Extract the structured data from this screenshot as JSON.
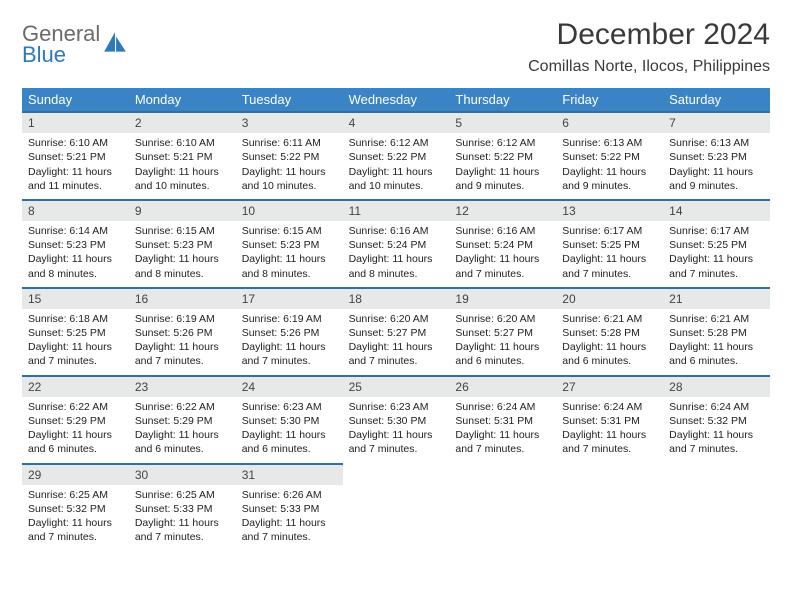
{
  "brand": {
    "general": "General",
    "blue": "Blue"
  },
  "title": "December 2024",
  "location": "Comillas Norte, Ilocos, Philippines",
  "colors": {
    "header_bg": "#3a84c5",
    "header_text": "#ffffff",
    "daynum_bg": "#e7e8e8",
    "daynum_border": "#2f6fa6",
    "logo_gray": "#6b6b6b",
    "logo_blue": "#2f79b9",
    "text": "#222222",
    "background": "#ffffff"
  },
  "layout": {
    "columns": 7,
    "rows": 5,
    "cell_fontsize_pt": 8,
    "header_fontsize_pt": 10,
    "title_fontsize_pt": 22,
    "location_fontsize_pt": 12
  },
  "weekdays": [
    "Sunday",
    "Monday",
    "Tuesday",
    "Wednesday",
    "Thursday",
    "Friday",
    "Saturday"
  ],
  "weeks": [
    [
      {
        "n": "1",
        "sunrise": "Sunrise: 6:10 AM",
        "sunset": "Sunset: 5:21 PM",
        "daylight": "Daylight: 11 hours and 11 minutes."
      },
      {
        "n": "2",
        "sunrise": "Sunrise: 6:10 AM",
        "sunset": "Sunset: 5:21 PM",
        "daylight": "Daylight: 11 hours and 10 minutes."
      },
      {
        "n": "3",
        "sunrise": "Sunrise: 6:11 AM",
        "sunset": "Sunset: 5:22 PM",
        "daylight": "Daylight: 11 hours and 10 minutes."
      },
      {
        "n": "4",
        "sunrise": "Sunrise: 6:12 AM",
        "sunset": "Sunset: 5:22 PM",
        "daylight": "Daylight: 11 hours and 10 minutes."
      },
      {
        "n": "5",
        "sunrise": "Sunrise: 6:12 AM",
        "sunset": "Sunset: 5:22 PM",
        "daylight": "Daylight: 11 hours and 9 minutes."
      },
      {
        "n": "6",
        "sunrise": "Sunrise: 6:13 AM",
        "sunset": "Sunset: 5:22 PM",
        "daylight": "Daylight: 11 hours and 9 minutes."
      },
      {
        "n": "7",
        "sunrise": "Sunrise: 6:13 AM",
        "sunset": "Sunset: 5:23 PM",
        "daylight": "Daylight: 11 hours and 9 minutes."
      }
    ],
    [
      {
        "n": "8",
        "sunrise": "Sunrise: 6:14 AM",
        "sunset": "Sunset: 5:23 PM",
        "daylight": "Daylight: 11 hours and 8 minutes."
      },
      {
        "n": "9",
        "sunrise": "Sunrise: 6:15 AM",
        "sunset": "Sunset: 5:23 PM",
        "daylight": "Daylight: 11 hours and 8 minutes."
      },
      {
        "n": "10",
        "sunrise": "Sunrise: 6:15 AM",
        "sunset": "Sunset: 5:23 PM",
        "daylight": "Daylight: 11 hours and 8 minutes."
      },
      {
        "n": "11",
        "sunrise": "Sunrise: 6:16 AM",
        "sunset": "Sunset: 5:24 PM",
        "daylight": "Daylight: 11 hours and 8 minutes."
      },
      {
        "n": "12",
        "sunrise": "Sunrise: 6:16 AM",
        "sunset": "Sunset: 5:24 PM",
        "daylight": "Daylight: 11 hours and 7 minutes."
      },
      {
        "n": "13",
        "sunrise": "Sunrise: 6:17 AM",
        "sunset": "Sunset: 5:25 PM",
        "daylight": "Daylight: 11 hours and 7 minutes."
      },
      {
        "n": "14",
        "sunrise": "Sunrise: 6:17 AM",
        "sunset": "Sunset: 5:25 PM",
        "daylight": "Daylight: 11 hours and 7 minutes."
      }
    ],
    [
      {
        "n": "15",
        "sunrise": "Sunrise: 6:18 AM",
        "sunset": "Sunset: 5:25 PM",
        "daylight": "Daylight: 11 hours and 7 minutes."
      },
      {
        "n": "16",
        "sunrise": "Sunrise: 6:19 AM",
        "sunset": "Sunset: 5:26 PM",
        "daylight": "Daylight: 11 hours and 7 minutes."
      },
      {
        "n": "17",
        "sunrise": "Sunrise: 6:19 AM",
        "sunset": "Sunset: 5:26 PM",
        "daylight": "Daylight: 11 hours and 7 minutes."
      },
      {
        "n": "18",
        "sunrise": "Sunrise: 6:20 AM",
        "sunset": "Sunset: 5:27 PM",
        "daylight": "Daylight: 11 hours and 7 minutes."
      },
      {
        "n": "19",
        "sunrise": "Sunrise: 6:20 AM",
        "sunset": "Sunset: 5:27 PM",
        "daylight": "Daylight: 11 hours and 6 minutes."
      },
      {
        "n": "20",
        "sunrise": "Sunrise: 6:21 AM",
        "sunset": "Sunset: 5:28 PM",
        "daylight": "Daylight: 11 hours and 6 minutes."
      },
      {
        "n": "21",
        "sunrise": "Sunrise: 6:21 AM",
        "sunset": "Sunset: 5:28 PM",
        "daylight": "Daylight: 11 hours and 6 minutes."
      }
    ],
    [
      {
        "n": "22",
        "sunrise": "Sunrise: 6:22 AM",
        "sunset": "Sunset: 5:29 PM",
        "daylight": "Daylight: 11 hours and 6 minutes."
      },
      {
        "n": "23",
        "sunrise": "Sunrise: 6:22 AM",
        "sunset": "Sunset: 5:29 PM",
        "daylight": "Daylight: 11 hours and 6 minutes."
      },
      {
        "n": "24",
        "sunrise": "Sunrise: 6:23 AM",
        "sunset": "Sunset: 5:30 PM",
        "daylight": "Daylight: 11 hours and 6 minutes."
      },
      {
        "n": "25",
        "sunrise": "Sunrise: 6:23 AM",
        "sunset": "Sunset: 5:30 PM",
        "daylight": "Daylight: 11 hours and 7 minutes."
      },
      {
        "n": "26",
        "sunrise": "Sunrise: 6:24 AM",
        "sunset": "Sunset: 5:31 PM",
        "daylight": "Daylight: 11 hours and 7 minutes."
      },
      {
        "n": "27",
        "sunrise": "Sunrise: 6:24 AM",
        "sunset": "Sunset: 5:31 PM",
        "daylight": "Daylight: 11 hours and 7 minutes."
      },
      {
        "n": "28",
        "sunrise": "Sunrise: 6:24 AM",
        "sunset": "Sunset: 5:32 PM",
        "daylight": "Daylight: 11 hours and 7 minutes."
      }
    ],
    [
      {
        "n": "29",
        "sunrise": "Sunrise: 6:25 AM",
        "sunset": "Sunset: 5:32 PM",
        "daylight": "Daylight: 11 hours and 7 minutes."
      },
      {
        "n": "30",
        "sunrise": "Sunrise: 6:25 AM",
        "sunset": "Sunset: 5:33 PM",
        "daylight": "Daylight: 11 hours and 7 minutes."
      },
      {
        "n": "31",
        "sunrise": "Sunrise: 6:26 AM",
        "sunset": "Sunset: 5:33 PM",
        "daylight": "Daylight: 11 hours and 7 minutes."
      },
      {
        "empty": true
      },
      {
        "empty": true
      },
      {
        "empty": true
      },
      {
        "empty": true
      }
    ]
  ]
}
